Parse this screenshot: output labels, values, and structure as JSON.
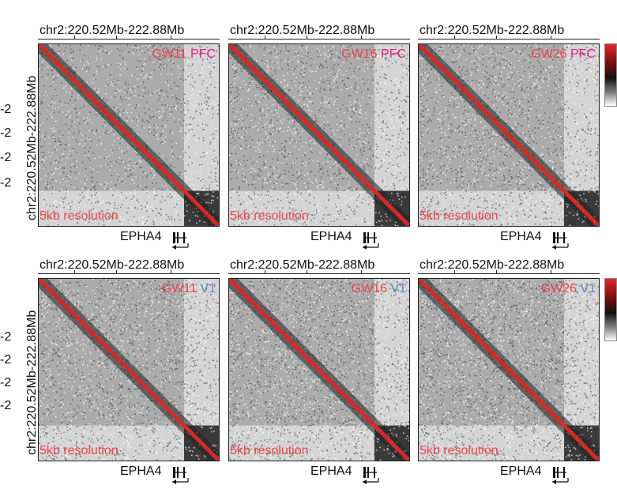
{
  "left_ticks": [
    "-2",
    "-2",
    "-2",
    "-2"
  ],
  "y_axis_label": "chr2:220.52Mb-222.88Mb",
  "resolution_label": "5kb resolution",
  "gene_label": "EPHA4",
  "colors": {
    "stage": "#e8434b",
    "pfc": "#e01e8c",
    "v1": "#5b86c4",
    "diagonal": "#d42a2a"
  },
  "chart_data": [
    {
      "type": "heatmap",
      "region": "chr2:220.52Mb-222.88Mb",
      "stage": "GW11",
      "tissue": "PFC",
      "resolution": "5kb resolution",
      "gene": "EPHA4",
      "tad_boundary_fraction": 0.8
    },
    {
      "type": "heatmap",
      "region": "chr2:220.52Mb-222.88Mb",
      "stage": "GW16",
      "tissue": "PFC",
      "resolution": "5kb resolution",
      "gene": "EPHA4",
      "tad_boundary_fraction": 0.8
    },
    {
      "type": "heatmap",
      "region": "chr2:220.52Mb-222.88Mb",
      "stage": "GW26",
      "tissue": "PFC",
      "resolution": "5kb resolution",
      "gene": "EPHA4",
      "tad_boundary_fraction": 0.8
    },
    {
      "type": "heatmap",
      "region": "chr2:220.52Mb-222.88Mb",
      "stage": "GW11",
      "tissue": "V1",
      "resolution": "5kb resolution",
      "gene": "EPHA4",
      "tad_boundary_fraction": 0.8
    },
    {
      "type": "heatmap",
      "region": "chr2:220.52Mb-222.88Mb",
      "stage": "GW16",
      "tissue": "V1",
      "resolution": "5kb resolution",
      "gene": "EPHA4",
      "tad_boundary_fraction": 0.8
    },
    {
      "type": "heatmap",
      "region": "chr2:220.52Mb-222.88Mb",
      "stage": "GW26",
      "tissue": "V1",
      "resolution": "5kb resolution",
      "gene": "EPHA4",
      "tad_boundary_fraction": 0.8
    }
  ]
}
